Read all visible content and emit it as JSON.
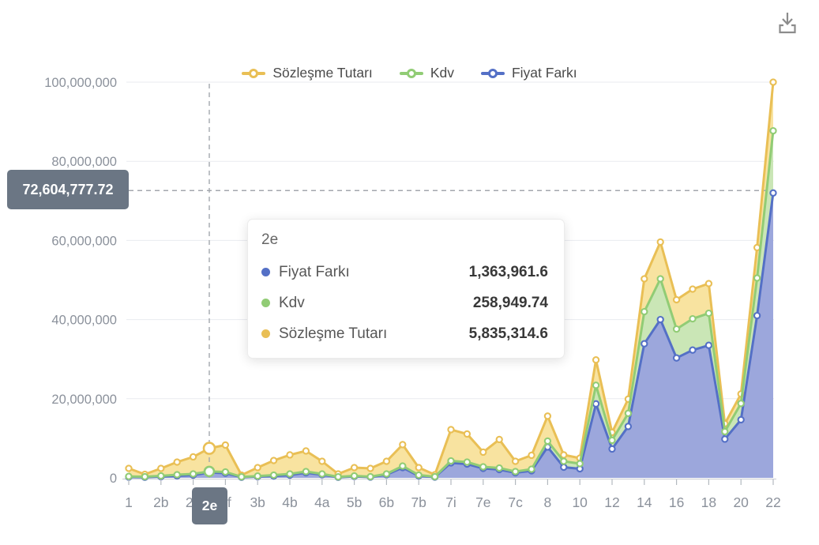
{
  "header": {
    "download_tooltip": "download"
  },
  "legend": {
    "items": [
      {
        "label": "Sözleşme Tutarı",
        "color": "#e9bf55"
      },
      {
        "label": "Kdv",
        "color": "#91cc75"
      },
      {
        "label": "Fiyat Farkı",
        "color": "#5470c6"
      }
    ]
  },
  "tooltip": {
    "title": "2e",
    "rows": [
      {
        "label": "Fiyat Farkı",
        "value": "1,363,961.6",
        "color": "#5470c6"
      },
      {
        "label": "Kdv",
        "value": "258,949.74",
        "color": "#91cc75"
      },
      {
        "label": "Sözleşme Tutarı",
        "value": "5,835,314.6",
        "color": "#e9bf55"
      }
    ]
  },
  "axis_pointer": {
    "y_label": "72,604,777.72",
    "x_label": "2e",
    "badge_color": "#6b7684"
  },
  "chart_data": {
    "type": "area",
    "stacked": true,
    "stack_order_bottom_to_top": [
      "Fiyat Farkı",
      "Kdv",
      "Sözleşme Tutarı"
    ],
    "legend_position": "top",
    "grid": true,
    "ylim": [
      0,
      100000000
    ],
    "y_ticks": [
      {
        "value": 0,
        "label": "0"
      },
      {
        "value": 20000000,
        "label": "20,000,000"
      },
      {
        "value": 40000000,
        "label": "40,000,000"
      },
      {
        "value": 60000000,
        "label": "60,000,000"
      },
      {
        "value": 80000000,
        "label": "80,000,000"
      },
      {
        "value": 100000000,
        "label": "100,000,000"
      }
    ],
    "x_display_labels": [
      "1",
      "",
      "2b",
      "",
      "2d",
      "",
      "2f",
      "",
      "3b",
      "",
      "4b",
      "",
      "4a",
      "",
      "5b",
      "",
      "6b",
      "",
      "7b",
      "",
      "7i",
      "",
      "7e",
      "",
      "7c",
      "",
      "8",
      "",
      "10",
      "",
      "12",
      "",
      "14",
      "",
      "16",
      "",
      "18",
      "",
      "20",
      "",
      "22"
    ],
    "hovered_index": 5,
    "hovered_label": "2e",
    "crosshair": {
      "x_index": 5,
      "y_value": 72604777.72,
      "y_value_label": "72,604,777.72"
    },
    "series": [
      {
        "name": "Fiyat Farkı",
        "line_color": "#5470c6",
        "fill_color": "#9ca7dc",
        "values": [
          200000,
          150000,
          300000,
          500000,
          700000,
          1363961.6,
          1200000,
          150000,
          300000,
          450000,
          700000,
          1300000,
          800000,
          150000,
          350000,
          200000,
          800000,
          2600000,
          500000,
          200000,
          3800000,
          3500000,
          2400000,
          2100000,
          1300000,
          1800000,
          7800000,
          2700000,
          2300000,
          18700000,
          7300000,
          13000000,
          33900000,
          40000000,
          30300000,
          32300000,
          33500000,
          9800000,
          14700000,
          41000000,
          72000000
        ]
      },
      {
        "name": "Kdv",
        "line_color": "#91cc75",
        "fill_color": "#cae6b6",
        "values": [
          150000,
          150000,
          200000,
          300000,
          300000,
          258949.74,
          300000,
          100000,
          150000,
          250000,
          300000,
          300000,
          200000,
          100000,
          150000,
          100000,
          200000,
          400000,
          200000,
          100000,
          500000,
          500000,
          400000,
          400000,
          300000,
          400000,
          1500000,
          1500000,
          1300000,
          4700000,
          2200000,
          3300000,
          8100000,
          10300000,
          7300000,
          7900000,
          8100000,
          1900000,
          4100000,
          9500000,
          15700000
        ]
      },
      {
        "name": "Sözleşme Tutarı",
        "line_color": "#e9bf55",
        "fill_color": "#f8e3a0",
        "values": [
          2050000,
          600000,
          1900000,
          3200000,
          4300000,
          5835314.6,
          6800000,
          450000,
          2150000,
          3700000,
          4800000,
          5200000,
          3200000,
          750000,
          2100000,
          2100000,
          3200000,
          5400000,
          1900000,
          500000,
          7900000,
          7100000,
          3700000,
          7200000,
          2600000,
          3500000,
          6300000,
          1600000,
          1400000,
          6400000,
          2000000,
          3600000,
          8300000,
          9300000,
          7400000,
          7500000,
          7500000,
          2000000,
          2400000,
          7700000,
          12300000
        ]
      }
    ]
  }
}
